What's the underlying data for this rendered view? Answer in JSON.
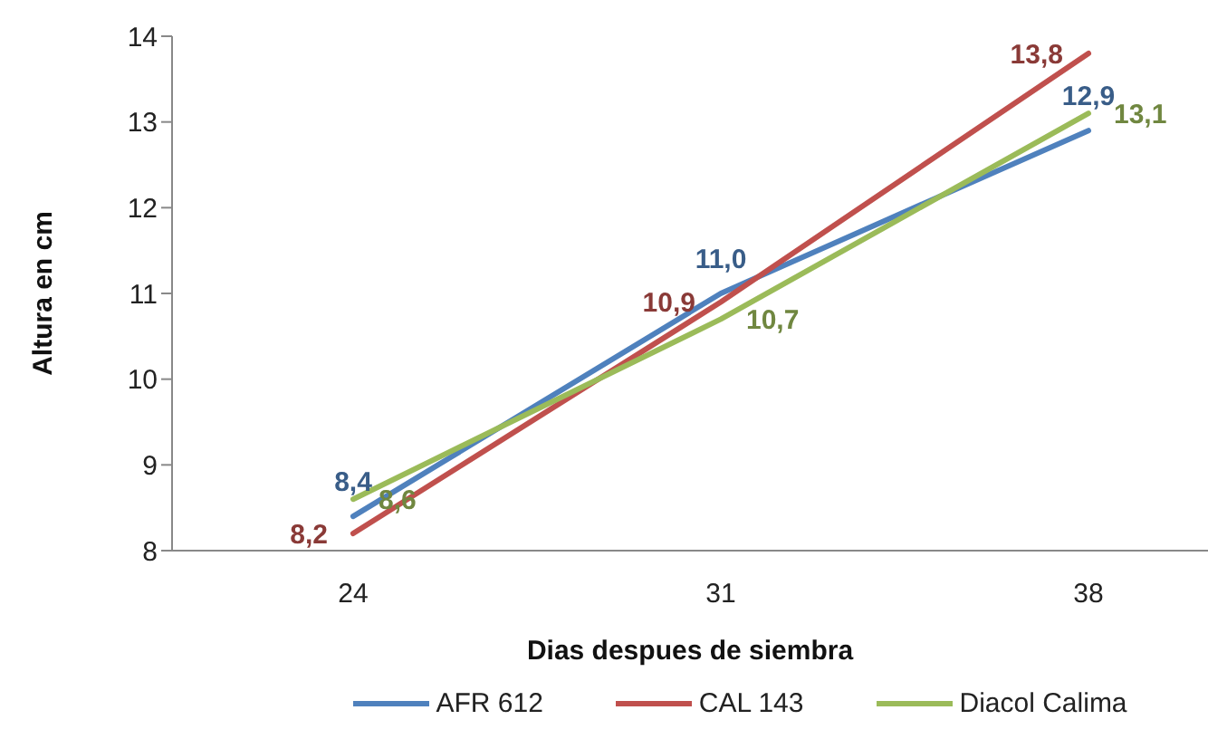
{
  "chart_data": {
    "type": "line",
    "xlabel": "Dias despues de siembra",
    "ylabel": "Altura en cm",
    "categories": [
      "24",
      "31",
      "38"
    ],
    "series": [
      {
        "name": "AFR 612",
        "color": "#4f81bd",
        "values": [
          8.4,
          11.0,
          12.9
        ],
        "value_labels": [
          "8,4",
          "11,0",
          "12,9"
        ]
      },
      {
        "name": "CAL 143",
        "color": "#c0504d",
        "values": [
          8.2,
          10.9,
          13.8
        ],
        "value_labels": [
          "8,2",
          "10,9",
          "13,8"
        ]
      },
      {
        "name": "Diacol Calima",
        "color": "#9bbb59",
        "values": [
          8.6,
          10.7,
          13.1
        ],
        "value_labels": [
          "8,6",
          "10,7",
          "13,1"
        ]
      }
    ],
    "ylim": [
      8,
      14
    ],
    "yticks": [
      8,
      9,
      10,
      11,
      12,
      13,
      14
    ],
    "legend": "bottom",
    "line_style": "solid"
  }
}
